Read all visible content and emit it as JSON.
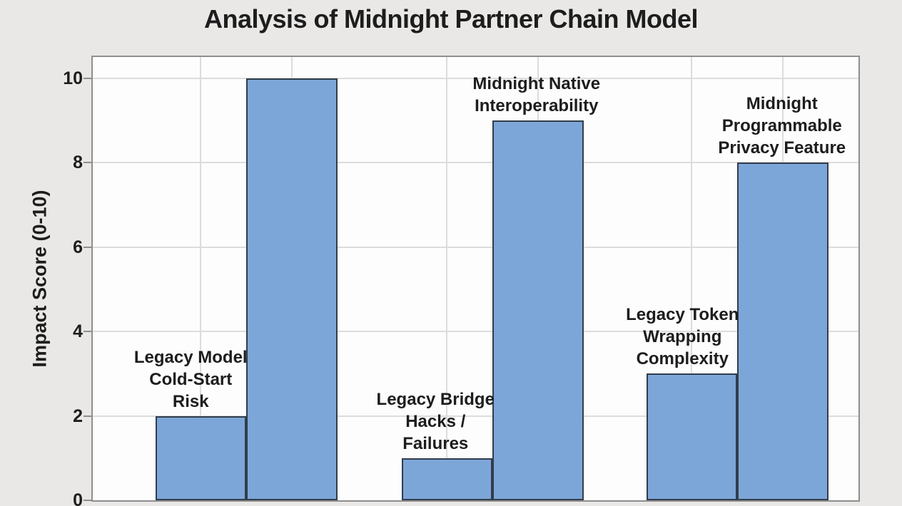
{
  "chart_data": {
    "type": "bar",
    "title": "Analysis of Midnight Partner Chain Model",
    "ylabel": "Impact Score (0-10)",
    "xlabel": "",
    "ylim": [
      0,
      10.5
    ],
    "yticks": [
      0,
      2,
      4,
      6,
      8,
      10
    ],
    "grid": true,
    "legend": null,
    "groups": [
      {
        "bars": [
          {
            "label_lines": [
              "Legacy Model",
              "Cold-Start",
              "Risk"
            ],
            "value": 2,
            "label_dx": -14
          },
          {
            "label_lines": [],
            "value": 10,
            "label_dx": 0
          }
        ]
      },
      {
        "bars": [
          {
            "label_lines": [
              "Legacy Bridge",
              "Hacks /",
              "Failures"
            ],
            "value": 1,
            "label_dx": -16
          },
          {
            "label_lines": [
              "Midnight Native",
              "Interoperability"
            ],
            "value": 9,
            "label_dx": -2
          }
        ]
      },
      {
        "bars": [
          {
            "label_lines": [
              "Legacy Token",
              "Wrapping",
              "Complexity"
            ],
            "value": 3,
            "label_dx": -13
          },
          {
            "label_lines": [
              "Midnight",
              "Programmable",
              "Privacy Feature"
            ],
            "value": 8,
            "label_dx": -1
          }
        ]
      }
    ]
  },
  "colors": {
    "figure_background": "#e9e8e6",
    "plot_background": "#fdfdfd",
    "bar_fill": "#7da6d8",
    "bar_edge": "#313d4b",
    "gridline": "#dcdcdc",
    "frame": "#8e8e8e",
    "text": "#1d1d1d"
  }
}
